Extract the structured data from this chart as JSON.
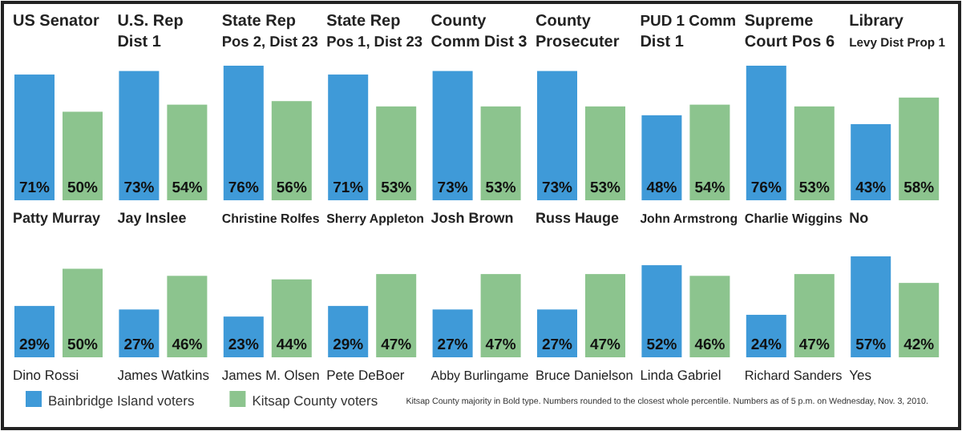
{
  "chart_data": [
    {
      "type": "bar",
      "title": "US Senator",
      "xlabel": "Patty Murray",
      "categories": [
        null
      ],
      "series": [
        {
          "name": "Bainbridge Island voters",
          "color": "#3f9ad8",
          "values": [
            71
          ],
          "value_labels": [
            "71%"
          ]
        },
        {
          "name": "Kitsap County voters",
          "color": "#8cc48e",
          "values": [
            50
          ],
          "value_labels": [
            "50%"
          ]
        }
      ],
      "legend": "bottom",
      "annotations": [
        "Kitsap County majority in Bold type. Numbers rounded to the closest whole percentile. Numbers as of 5 p.m. on Wednesday, Nov. 3, 2010."
      ]
    },
    {
      "type": "bar",
      "title": "U.S. Rep Dist 1",
      "xlabel": "Jay Inslee",
      "categories": [
        null
      ],
      "series": [
        {
          "color": "#3f9ad8",
          "values": [
            73
          ],
          "value_labels": [
            "73%"
          ]
        },
        {
          "color": "#8cc48e",
          "values": [
            54
          ],
          "value_labels": [
            "54%"
          ]
        }
      ]
    },
    {
      "type": "bar",
      "title": "State Rep Pos 2, Dist 23",
      "xlabel": "Christine Rolfes",
      "categories": [
        null
      ],
      "series": [
        {
          "color": "#3f9ad8",
          "values": [
            76
          ],
          "value_labels": [
            "76%"
          ]
        },
        {
          "color": "#8cc48e",
          "values": [
            56
          ],
          "value_labels": [
            "56%"
          ]
        }
      ]
    },
    {
      "type": "bar",
      "title": "State Rep Pos 1, Dist 23",
      "xlabel": "Sherry Appleton",
      "categories": [
        null
      ],
      "series": [
        {
          "color": "#3f9ad8",
          "values": [
            71
          ],
          "value_labels": [
            "71%"
          ]
        },
        {
          "color": "#8cc48e",
          "values": [
            53
          ],
          "value_labels": [
            "53%"
          ]
        }
      ]
    },
    {
      "type": "bar",
      "title": "County Comm Dist 3",
      "xlabel": "Josh Brown",
      "categories": [
        null
      ],
      "series": [
        {
          "color": "#3f9ad8",
          "values": [
            73
          ],
          "value_labels": [
            "73%"
          ]
        },
        {
          "color": "#8cc48e",
          "values": [
            53
          ],
          "value_labels": [
            "53%"
          ]
        }
      ]
    },
    {
      "type": "bar",
      "title": "County Prosecuter",
      "xlabel": "Russ Hauge",
      "categories": [
        null
      ],
      "series": [
        {
          "color": "#3f9ad8",
          "values": [
            73
          ],
          "value_labels": [
            "73%"
          ]
        },
        {
          "color": "#8cc48e",
          "values": [
            53
          ],
          "value_labels": [
            "53%"
          ]
        }
      ]
    },
    {
      "type": "bar",
      "title": "PUD 1 Comm Dist 1",
      "xlabel": "John Armstrong",
      "categories": [
        null
      ],
      "series": [
        {
          "color": "#3f9ad8",
          "values": [
            48
          ],
          "value_labels": [
            "48%"
          ]
        },
        {
          "color": "#8cc48e",
          "values": [
            54
          ],
          "value_labels": [
            "54%"
          ]
        }
      ]
    },
    {
      "type": "bar",
      "title": "Supreme Court Pos 6",
      "xlabel": "Charlie Wiggins",
      "categories": [
        null
      ],
      "series": [
        {
          "color": "#3f9ad8",
          "values": [
            76
          ],
          "value_labels": [
            "76%"
          ]
        },
        {
          "color": "#8cc48e",
          "values": [
            53
          ],
          "value_labels": [
            "53%"
          ]
        }
      ]
    },
    {
      "type": "bar",
      "title": "Library Levy Dist Prop 1",
      "xlabel": "No",
      "categories": [
        null
      ],
      "series": [
        {
          "color": "#3f9ad8",
          "values": [
            43
          ],
          "value_labels": [
            "43%"
          ]
        },
        {
          "color": "#8cc48e",
          "values": [
            58
          ],
          "value_labels": [
            "58%"
          ]
        }
      ]
    },
    {
      "type": "bar",
      "xlabel": "Dino Rossi",
      "categories": [
        null
      ],
      "series": [
        {
          "color": "#3f9ad8",
          "values": [
            29
          ],
          "value_labels": [
            "29%"
          ]
        },
        {
          "color": "#8cc48e",
          "values": [
            50
          ],
          "value_labels": [
            "50%"
          ]
        }
      ]
    },
    {
      "type": "bar",
      "xlabel": "James Watkins",
      "categories": [
        null
      ],
      "series": [
        {
          "color": "#3f9ad8",
          "values": [
            27
          ],
          "value_labels": [
            "27%"
          ]
        },
        {
          "color": "#8cc48e",
          "values": [
            46
          ],
          "value_labels": [
            "46%"
          ]
        }
      ]
    },
    {
      "type": "bar",
      "xlabel": "James M. Olsen",
      "categories": [
        null
      ],
      "series": [
        {
          "color": "#3f9ad8",
          "values": [
            23
          ],
          "value_labels": [
            "23%"
          ]
        },
        {
          "color": "#8cc48e",
          "values": [
            44
          ],
          "value_labels": [
            "44%"
          ]
        }
      ]
    },
    {
      "type": "bar",
      "xlabel": "Pete DeBoer",
      "categories": [
        null
      ],
      "series": [
        {
          "color": "#3f9ad8",
          "values": [
            29
          ],
          "value_labels": [
            "29%"
          ]
        },
        {
          "color": "#8cc48e",
          "values": [
            47
          ],
          "value_labels": [
            "47%"
          ]
        }
      ]
    },
    {
      "type": "bar",
      "xlabel": "Abby Burlingame",
      "categories": [
        null
      ],
      "series": [
        {
          "color": "#3f9ad8",
          "values": [
            27
          ],
          "value_labels": [
            "27%"
          ]
        },
        {
          "color": "#8cc48e",
          "values": [
            47
          ],
          "value_labels": [
            "47%"
          ]
        }
      ]
    },
    {
      "type": "bar",
      "xlabel": "Bruce Danielson",
      "categories": [
        null
      ],
      "series": [
        {
          "color": "#3f9ad8",
          "values": [
            27
          ],
          "value_labels": [
            "27%"
          ]
        },
        {
          "color": "#8cc48e",
          "values": [
            47
          ],
          "value_labels": [
            "47%"
          ]
        }
      ]
    },
    {
      "type": "bar",
      "xlabel": "Linda Gabriel",
      "categories": [
        null
      ],
      "series": [
        {
          "color": "#3f9ad8",
          "values": [
            52
          ],
          "value_labels": [
            "52%"
          ]
        },
        {
          "color": "#8cc48e",
          "values": [
            46
          ],
          "value_labels": [
            "46%"
          ]
        }
      ]
    },
    {
      "type": "bar",
      "xlabel": "Richard Sanders",
      "categories": [
        null
      ],
      "series": [
        {
          "color": "#3f9ad8",
          "values": [
            24
          ],
          "value_labels": [
            "24%"
          ]
        },
        {
          "color": "#8cc48e",
          "values": [
            47
          ],
          "value_labels": [
            "47%"
          ]
        }
      ]
    },
    {
      "type": "bar",
      "xlabel": "Yes",
      "categories": [
        null
      ],
      "series": [
        {
          "color": "#3f9ad8",
          "values": [
            57
          ],
          "value_labels": [
            "57%"
          ]
        },
        {
          "color": "#8cc48e",
          "values": [
            42
          ],
          "value_labels": [
            "42%"
          ]
        }
      ]
    }
  ]
}
